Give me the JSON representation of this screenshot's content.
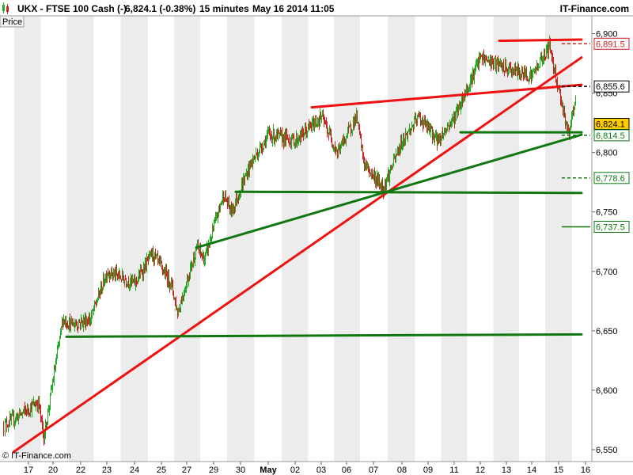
{
  "header": {
    "instrument": "UKX - FTSE 100 Cash (-)",
    "quote": "6,824.1 (-0.38%)",
    "interval": "15 minutes",
    "datetime": "May 16 2014 11:05",
    "brand": "IT-Finance.com"
  },
  "panel_label": "Price",
  "copyright": "© IT-Finance.com",
  "colors": {
    "up": "#22aa22",
    "down": "#cc2222",
    "trend_red": "#ee1111",
    "trend_green": "#117711",
    "band": "#ececec",
    "last_price_box": "#ffcc00"
  },
  "chart_data": {
    "type": "candlestick",
    "title": "UKX - FTSE 100 Cash (-)",
    "ylabel": "Price",
    "ylim": [
      6540,
      6915
    ],
    "y_ticks": [
      6550,
      6600,
      6650,
      6700,
      6750,
      6800,
      6850,
      6900
    ],
    "y_tick_labels": [
      "6,550",
      "6,600",
      "6,650",
      "6,700",
      "6,750",
      "6,800",
      "6,850",
      "6,900"
    ],
    "x_labels": [
      "17",
      "20",
      "22",
      "23",
      "24",
      "25",
      "27",
      "29",
      "30",
      "May",
      "02",
      "03",
      "06",
      "07",
      "08",
      "09",
      "11",
      "12",
      "13",
      "14",
      "15",
      "16"
    ],
    "close_path": [
      {
        "x": "17",
        "y": 6570
      },
      {
        "x": "17",
        "y": 6590
      },
      {
        "x": "20",
        "y": 6560
      },
      {
        "x": "20",
        "y": 6660
      },
      {
        "x": "22",
        "y": 6655
      },
      {
        "x": "22",
        "y": 6660
      },
      {
        "x": "23",
        "y": 6700
      },
      {
        "x": "24",
        "y": 6690
      },
      {
        "x": "25",
        "y": 6715
      },
      {
        "x": "25",
        "y": 6690
      },
      {
        "x": "27",
        "y": 6665
      },
      {
        "x": "27",
        "y": 6720
      },
      {
        "x": "29",
        "y": 6710
      },
      {
        "x": "29",
        "y": 6765
      },
      {
        "x": "30",
        "y": 6750
      },
      {
        "x": "30",
        "y": 6790
      },
      {
        "x": "May",
        "y": 6815
      },
      {
        "x": "02",
        "y": 6810
      },
      {
        "x": "03",
        "y": 6830
      },
      {
        "x": "06",
        "y": 6800
      },
      {
        "x": "06",
        "y": 6830
      },
      {
        "x": "07",
        "y": 6790
      },
      {
        "x": "07",
        "y": 6770
      },
      {
        "x": "08",
        "y": 6810
      },
      {
        "x": "09",
        "y": 6830
      },
      {
        "x": "09",
        "y": 6810
      },
      {
        "x": "11",
        "y": 6830
      },
      {
        "x": "12",
        "y": 6880
      },
      {
        "x": "13",
        "y": 6870
      },
      {
        "x": "14",
        "y": 6865
      },
      {
        "x": "15",
        "y": 6890
      },
      {
        "x": "15",
        "y": 6815
      },
      {
        "x": "16",
        "y": 6845
      },
      {
        "x": "16",
        "y": 6824
      }
    ],
    "price_labels": [
      {
        "text": "6,891.5",
        "value": 6891.5,
        "color": "#cc2222",
        "box": false,
        "marker": "dashed"
      },
      {
        "text": "6,855.6",
        "value": 6855.6,
        "color": "#000000",
        "box": false,
        "marker": "dashed"
      },
      {
        "text": "6,824.1",
        "value": 6824.1,
        "color": "#000000",
        "box": true,
        "marker": "none"
      },
      {
        "text": "6,814.5",
        "value": 6814.5,
        "color": "#117711",
        "box": false,
        "marker": "dashed"
      },
      {
        "text": "6,778.6",
        "value": 6778.6,
        "color": "#117711",
        "box": false,
        "marker": "dashed"
      },
      {
        "text": "6,737.5",
        "value": 6737.5,
        "color": "#117711",
        "box": false,
        "marker": "solid"
      }
    ],
    "trend_lines": [
      {
        "color": "red",
        "x1": "17",
        "y1": 6548,
        "x2": "16",
        "y2": 6880
      },
      {
        "color": "red",
        "x1": "03",
        "y1": 6838,
        "x2": "16",
        "y2": 6857
      },
      {
        "color": "red",
        "x1": "13",
        "y1": 6894,
        "x2": "16",
        "y2": 6895
      },
      {
        "color": "green",
        "x1": "27",
        "y1": 6720,
        "x2": "16",
        "y2": 6815
      },
      {
        "color": "green",
        "x1": "20",
        "y1": 6645,
        "x2": "16",
        "y2": 6647
      },
      {
        "color": "green",
        "x1": "30",
        "y1": 6767,
        "x2": "16",
        "y2": 6766
      },
      {
        "color": "green",
        "x1": "11",
        "y1": 6817,
        "x2": "16",
        "y2": 6817
      }
    ],
    "grid": false
  }
}
